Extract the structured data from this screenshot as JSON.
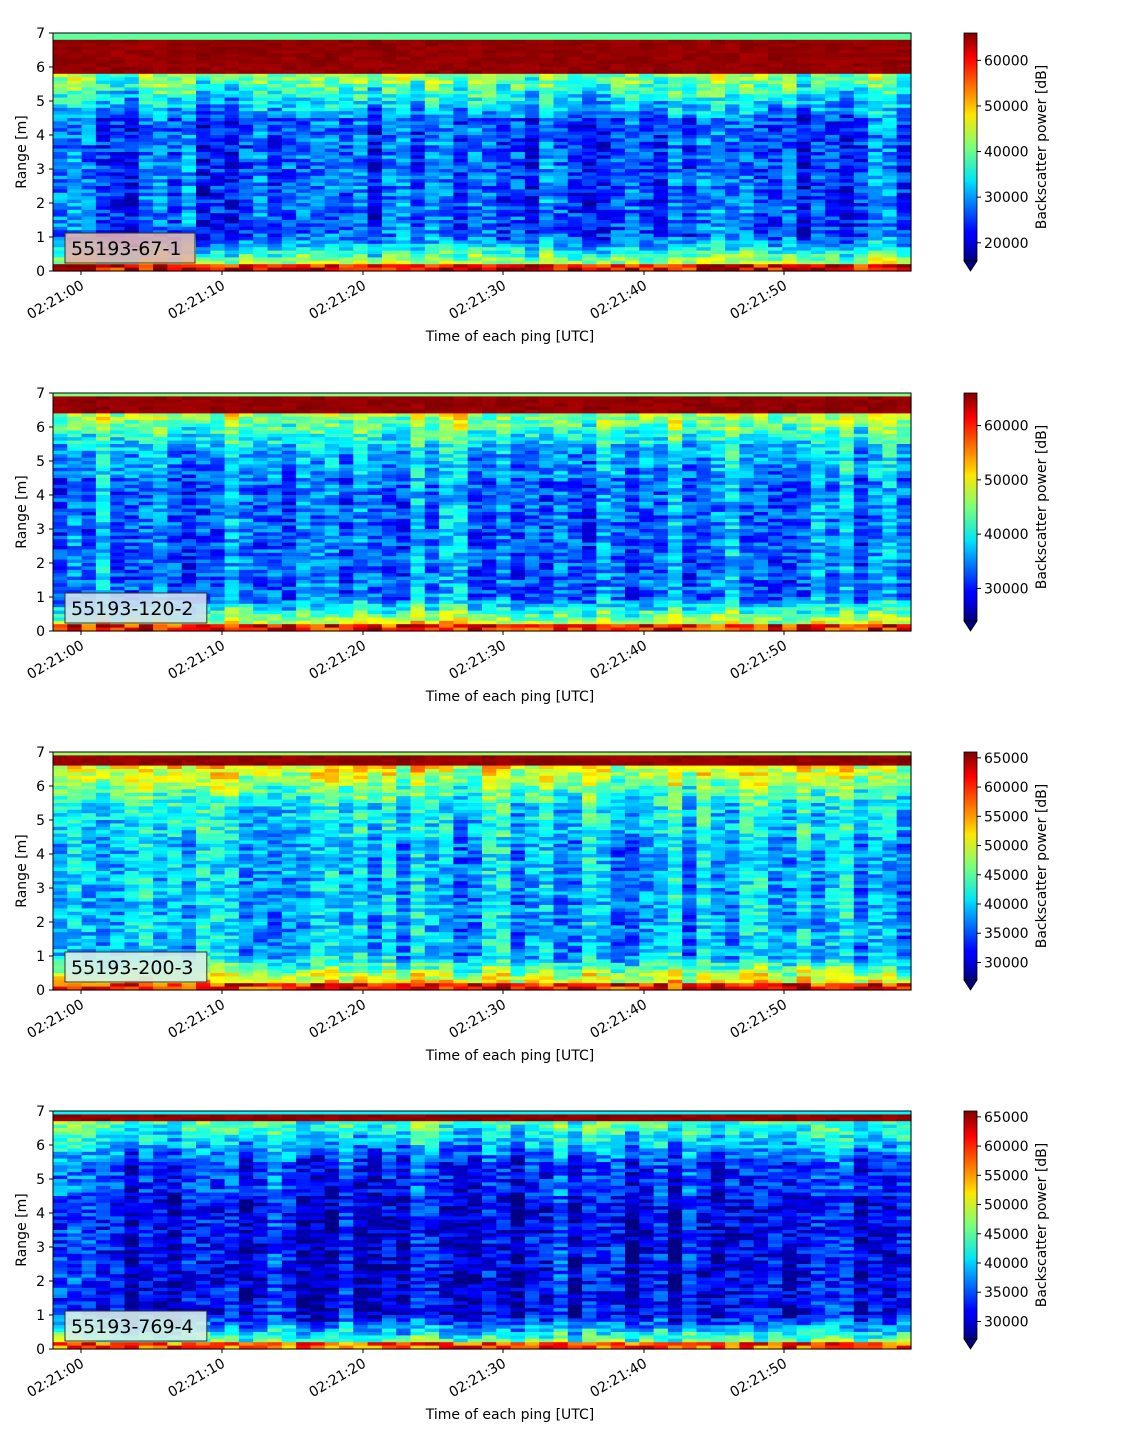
{
  "chart_data": [
    {
      "type": "heatmap",
      "annotation": "55193-67-1",
      "xlabel": "Time of each ping [UTC]",
      "ylabel": "Range [m]",
      "xticks": [
        "02:21:00",
        "02:21:10",
        "02:21:20",
        "02:21:30",
        "02:21:40",
        "02:21:50"
      ],
      "ylim": [
        0,
        7
      ],
      "yticks": [
        0,
        1,
        2,
        3,
        4,
        5,
        6,
        7
      ],
      "colorbar": {
        "label": "Backscatter power [dB]",
        "vmin": 16000,
        "vmax": 66000,
        "ticks": [
          20000,
          30000,
          40000,
          50000,
          60000
        ],
        "extend": "min"
      },
      "profile": {
        "surface_band": [
          0.2,
          1.15
        ],
        "surface_level": 1.0,
        "noise_level": 0.22,
        "top_band": [
          6.85,
          7.0
        ],
        "top_level": 0.9,
        "mid_level": 0.2
      }
    },
    {
      "type": "heatmap",
      "annotation": "55193-120-2",
      "xlabel": "Time of each ping [UTC]",
      "ylabel": "Range [m]",
      "xticks": [
        "02:21:00",
        "02:21:10",
        "02:21:20",
        "02:21:30",
        "02:21:40",
        "02:21:50"
      ],
      "ylim": [
        0,
        7
      ],
      "yticks": [
        0,
        1,
        2,
        3,
        4,
        5,
        6,
        7
      ],
      "colorbar": {
        "label": "Backscatter power [dB]",
        "vmin": 24000,
        "vmax": 66000,
        "ticks": [
          30000,
          40000,
          50000,
          60000
        ],
        "extend": "min"
      },
      "profile": {
        "surface_band": [
          0.1,
          0.55
        ],
        "surface_level": 1.0,
        "noise_level": 0.25,
        "top_band": [
          6.8,
          7.0
        ],
        "top_level": 0.85,
        "mid_level": 0.25
      }
    },
    {
      "type": "heatmap",
      "annotation": "55193-200-3",
      "xlabel": "Time of each ping [UTC]",
      "ylabel": "Range [m]",
      "xticks": [
        "02:21:00",
        "02:21:10",
        "02:21:20",
        "02:21:30",
        "02:21:40",
        "02:21:50"
      ],
      "ylim": [
        0,
        7
      ],
      "yticks": [
        0,
        1,
        2,
        3,
        4,
        5,
        6,
        7
      ],
      "colorbar": {
        "label": "Backscatter power [dB]",
        "vmin": 27000,
        "vmax": 66000,
        "ticks": [
          30000,
          35000,
          40000,
          45000,
          50000,
          55000,
          60000,
          65000
        ],
        "extend": "min"
      },
      "profile": {
        "surface_band": [
          0.1,
          0.4
        ],
        "surface_level": 1.0,
        "noise_level": 0.28,
        "top_band": [
          6.8,
          7.0
        ],
        "top_level": 0.85,
        "mid_level": 0.3
      }
    },
    {
      "type": "heatmap",
      "annotation": "55193-769-4",
      "xlabel": "Time of each ping [UTC]",
      "ylabel": "Range [m]",
      "xticks": [
        "02:21:00",
        "02:21:10",
        "02:21:20",
        "02:21:30",
        "02:21:40",
        "02:21:50"
      ],
      "ylim": [
        0,
        7
      ],
      "yticks": [
        0,
        1,
        2,
        3,
        4,
        5,
        6,
        7
      ],
      "colorbar": {
        "label": "Backscatter power [dB]",
        "vmin": 27000,
        "vmax": 66000,
        "ticks": [
          30000,
          35000,
          40000,
          45000,
          50000,
          55000,
          60000,
          65000
        ],
        "extend": "min"
      },
      "profile": {
        "surface_band": [
          0.15,
          0.35
        ],
        "surface_level": 1.0,
        "noise_level": 0.12,
        "top_band": [
          6.85,
          7.0
        ],
        "top_level": 0.8,
        "mid_level": 0.12
      }
    }
  ],
  "colors": {
    "colormap": "jet",
    "label_box_colors": [
      "#e0b0b0",
      "#d0e0f0",
      "#d6f0e8",
      "#d6f0e8"
    ]
  }
}
